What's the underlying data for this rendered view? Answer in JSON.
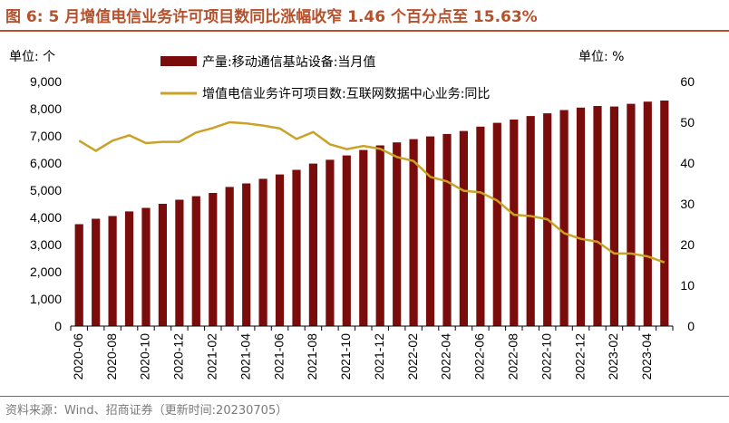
{
  "figure": {
    "title": "图 6:  5 月增值电信业务许可项目数同比涨幅收窄 1.46 个百分点至 15.63%",
    "source": "资料来源：Wind、招商证券（更新时间:20230705）"
  },
  "colors": {
    "title": "#b5512c",
    "bar": "#7b0c0c",
    "line": "#c9a227"
  },
  "chart_data": {
    "type": "bar",
    "categories": [
      "2020-06",
      "2020-07",
      "2020-08",
      "2020-09",
      "2020-10",
      "2020-11",
      "2020-12",
      "2021-01",
      "2021-02",
      "2021-03",
      "2021-04",
      "2021-05",
      "2021-06",
      "2021-07",
      "2021-08",
      "2021-09",
      "2021-10",
      "2021-11",
      "2021-12",
      "2022-01",
      "2022-02",
      "2022-03",
      "2022-04",
      "2022-05",
      "2022-06",
      "2022-07",
      "2022-08",
      "2022-09",
      "2022-10",
      "2022-11",
      "2022-12",
      "2023-01",
      "2023-02",
      "2023-03",
      "2023-04",
      "2023-05"
    ],
    "x_tick_labels": [
      "2020-06",
      "2020-08",
      "2020-10",
      "2020-12",
      "2021-02",
      "2021-04",
      "2021-06",
      "2021-08",
      "2021-10",
      "2021-12",
      "2022-02",
      "2022-04",
      "2022-06",
      "2022-08",
      "2022-10",
      "2022-12",
      "2023-02",
      "2023-04"
    ],
    "series": [
      {
        "name": "产量:移动通信基站设备:当月值",
        "type": "bar",
        "axis": "left",
        "values": [
          3750,
          3950,
          4050,
          4220,
          4350,
          4500,
          4650,
          4780,
          4900,
          5120,
          5250,
          5420,
          5580,
          5750,
          5980,
          6120,
          6280,
          6480,
          6650,
          6760,
          6880,
          6980,
          7070,
          7180,
          7340,
          7480,
          7600,
          7730,
          7830,
          7950,
          8040,
          8100,
          8080,
          8180,
          8260,
          8300
        ]
      },
      {
        "name": "增值电信业务许可项目数:互联网数据中心业务:同比",
        "type": "line",
        "axis": "right",
        "values": [
          45.5,
          43,
          45.5,
          46.8,
          44.9,
          45.2,
          45.2,
          47.5,
          48.6,
          50,
          49.7,
          49.2,
          48.5,
          45.9,
          47.6,
          44.6,
          43.4,
          44.2,
          43.5,
          41.5,
          40.5,
          36.6,
          35.5,
          33.2,
          32.8,
          30.8,
          27.3,
          27.0,
          26.2,
          22.8,
          21.4,
          20.7,
          17.8,
          17.8,
          17.1,
          15.63
        ]
      }
    ],
    "left_axis": {
      "ticks": [
        "0",
        "1,000",
        "2,000",
        "3,000",
        "4,000",
        "5,000",
        "6,000",
        "7,000",
        "8,000",
        "9,000"
      ],
      "ylim": [
        0,
        9000
      ],
      "unit": "单位:  个"
    },
    "right_axis": {
      "ticks": [
        "0",
        "10",
        "20",
        "30",
        "40",
        "50",
        "60"
      ],
      "ylim": [
        0,
        60
      ],
      "unit": "单位:   %"
    },
    "grid": false,
    "legend_position": "top"
  }
}
